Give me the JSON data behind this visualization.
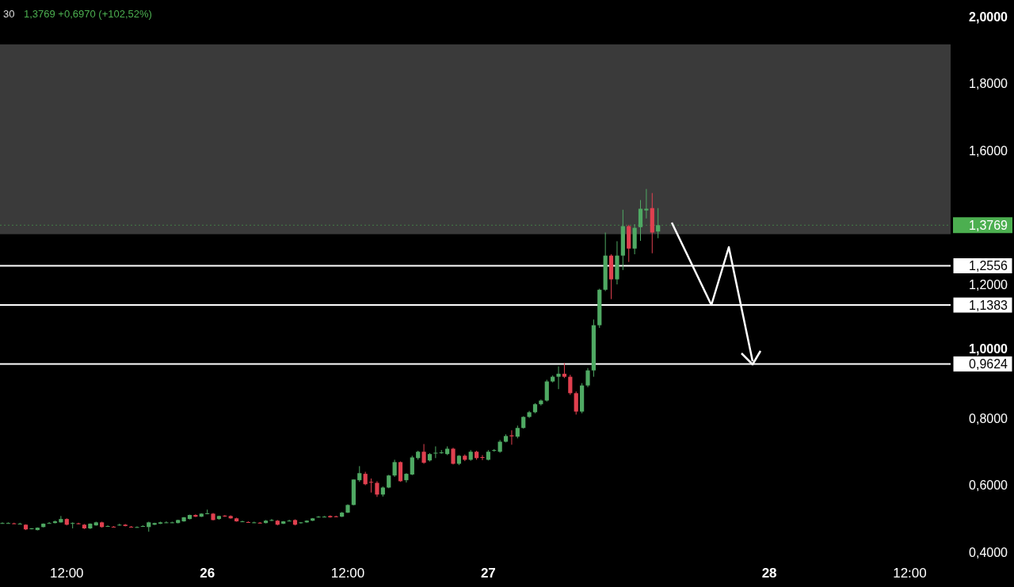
{
  "chart_data": {
    "type": "candlestick",
    "title": "30",
    "subtitle": "1,3769 +0,6970 (+102,52%)",
    "categories": [
      null,
      null,
      null,
      null,
      null,
      null,
      null,
      null,
      null,
      null,
      null,
      "12:00",
      null,
      null,
      null,
      null,
      null,
      null,
      null,
      null,
      null,
      null,
      null,
      null,
      null,
      null,
      null,
      null,
      null,
      null,
      null,
      null,
      null,
      null,
      null,
      "26",
      null,
      null,
      null,
      null,
      null,
      null,
      null,
      null,
      null,
      null,
      null,
      null,
      null,
      null,
      null,
      null,
      null,
      null,
      null,
      null,
      null,
      null,
      null,
      "12:00",
      null,
      null,
      null,
      null,
      null,
      null,
      null,
      null,
      null,
      null,
      null,
      null,
      null,
      null,
      null,
      null,
      null,
      null,
      null,
      null,
      null,
      null,
      null,
      "27",
      null,
      null,
      null,
      null,
      null,
      null,
      null,
      null,
      null,
      null,
      null,
      null,
      null,
      null,
      null,
      null,
      null,
      null,
      null,
      null,
      null,
      null,
      null,
      null,
      null,
      null,
      null,
      null,
      null,
      null,
      null,
      null,
      null,
      null,
      null,
      null,
      null,
      null,
      null,
      null,
      null,
      null,
      null,
      null,
      null,
      null,
      null,
      "28",
      null,
      null,
      null,
      null,
      null,
      null,
      null,
      null,
      null,
      null,
      null,
      null,
      null,
      null,
      null,
      null,
      null,
      null,
      null,
      null,
      null,
      null,
      null,
      "12:00",
      null,
      null,
      null,
      null,
      null,
      null
    ],
    "ohlc": [
      [
        0.487,
        0.489,
        0.485,
        0.487
      ],
      [
        0.487,
        0.489,
        0.485,
        0.487
      ],
      [
        0.486,
        0.488,
        0.484,
        0.485
      ],
      [
        0.485,
        0.488,
        0.483,
        0.485
      ],
      [
        0.482,
        0.483,
        0.466,
        0.468
      ],
      [
        0.47,
        0.472,
        0.468,
        0.471
      ],
      [
        0.466,
        0.474,
        0.465,
        0.473
      ],
      [
        0.475,
        0.486,
        0.474,
        0.485
      ],
      [
        0.486,
        0.49,
        0.485,
        0.487
      ],
      [
        0.487,
        0.494,
        0.486,
        0.492
      ],
      [
        0.489,
        0.508,
        0.488,
        0.499
      ],
      [
        0.499,
        0.501,
        0.48,
        0.482
      ],
      [
        0.487,
        0.489,
        0.471,
        0.487
      ],
      [
        0.486,
        0.488,
        0.483,
        0.485
      ],
      [
        0.482,
        0.484,
        0.469,
        0.471
      ],
      [
        0.471,
        0.486,
        0.469,
        0.485
      ],
      [
        0.48,
        0.491,
        0.479,
        0.489
      ],
      [
        0.489,
        0.491,
        0.473,
        0.475
      ],
      [
        0.478,
        0.48,
        0.476,
        0.478
      ],
      [
        0.476,
        0.478,
        0.474,
        0.475
      ],
      [
        0.481,
        0.485,
        0.479,
        0.482
      ],
      [
        0.482,
        0.484,
        0.477,
        0.478
      ],
      [
        0.476,
        0.478,
        0.474,
        0.475
      ],
      [
        0.475,
        0.477,
        0.473,
        0.475
      ],
      [
        0.477,
        0.48,
        0.476,
        0.478
      ],
      [
        0.475,
        0.491,
        0.461,
        0.489
      ],
      [
        0.482,
        0.488,
        0.481,
        0.487
      ],
      [
        0.485,
        0.491,
        0.484,
        0.489
      ],
      [
        0.489,
        0.492,
        0.487,
        0.489
      ],
      [
        0.489,
        0.491,
        0.487,
        0.489
      ],
      [
        0.487,
        0.497,
        0.486,
        0.496
      ],
      [
        0.492,
        0.505,
        0.491,
        0.504
      ],
      [
        0.499,
        0.512,
        0.498,
        0.511
      ],
      [
        0.511,
        0.513,
        0.505,
        0.506
      ],
      [
        0.506,
        0.516,
        0.505,
        0.515
      ],
      [
        0.515,
        0.527,
        0.513,
        0.516
      ],
      [
        0.515,
        0.517,
        0.495,
        0.496
      ],
      [
        0.499,
        0.509,
        0.497,
        0.508
      ],
      [
        0.509,
        0.511,
        0.505,
        0.507
      ],
      [
        0.508,
        0.51,
        0.5,
        0.501
      ],
      [
        0.501,
        0.503,
        0.491,
        0.492
      ],
      [
        0.492,
        0.494,
        0.49,
        0.492
      ],
      [
        0.49,
        0.492,
        0.488,
        0.489
      ],
      [
        0.489,
        0.491,
        0.487,
        0.489
      ],
      [
        0.488,
        0.49,
        0.485,
        0.487
      ],
      [
        0.487,
        0.496,
        0.486,
        0.494
      ],
      [
        0.495,
        0.499,
        0.493,
        0.496
      ],
      [
        0.494,
        0.496,
        0.48,
        0.482
      ],
      [
        0.485,
        0.493,
        0.484,
        0.492
      ],
      [
        0.494,
        0.497,
        0.492,
        0.494
      ],
      [
        0.496,
        0.498,
        0.48,
        0.482
      ],
      [
        0.487,
        0.49,
        0.485,
        0.489
      ],
      [
        0.489,
        0.495,
        0.488,
        0.494
      ],
      [
        0.494,
        0.502,
        0.493,
        0.501
      ],
      [
        0.504,
        0.508,
        0.503,
        0.506
      ],
      [
        0.506,
        0.508,
        0.504,
        0.506
      ],
      [
        0.508,
        0.51,
        0.503,
        0.504
      ],
      [
        0.507,
        0.509,
        0.504,
        0.505
      ],
      [
        0.506,
        0.52,
        0.505,
        0.518
      ],
      [
        0.518,
        0.543,
        0.517,
        0.541
      ],
      [
        0.541,
        0.617,
        0.54,
        0.617
      ],
      [
        0.615,
        0.657,
        0.61,
        0.636
      ],
      [
        0.634,
        0.64,
        0.6,
        0.603
      ],
      [
        0.61,
        0.62,
        0.578,
        0.609
      ],
      [
        0.607,
        0.612,
        0.565,
        0.572
      ],
      [
        0.572,
        0.596,
        0.566,
        0.593
      ],
      [
        0.593,
        0.631,
        0.591,
        0.629
      ],
      [
        0.629,
        0.676,
        0.625,
        0.669
      ],
      [
        0.669,
        0.671,
        0.61,
        0.612
      ],
      [
        0.615,
        0.636,
        0.608,
        0.634
      ],
      [
        0.632,
        0.688,
        0.63,
        0.683
      ],
      [
        0.681,
        0.703,
        0.676,
        0.7
      ],
      [
        0.7,
        0.723,
        0.664,
        0.667
      ],
      [
        0.674,
        0.696,
        0.671,
        0.693
      ],
      [
        0.695,
        0.716,
        0.681,
        0.697
      ],
      [
        0.698,
        0.705,
        0.694,
        0.698
      ],
      [
        0.693,
        0.716,
        0.69,
        0.709
      ],
      [
        0.709,
        0.712,
        0.662,
        0.664
      ],
      [
        0.664,
        0.69,
        0.66,
        0.688
      ],
      [
        0.688,
        0.692,
        0.672,
        0.676
      ],
      [
        0.676,
        0.705,
        0.673,
        0.7
      ],
      [
        0.7,
        0.703,
        0.676,
        0.681
      ],
      [
        0.684,
        0.69,
        0.675,
        0.682
      ],
      [
        0.676,
        0.705,
        0.674,
        0.7
      ],
      [
        0.703,
        0.708,
        0.7,
        0.705
      ],
      [
        0.7,
        0.735,
        0.697,
        0.73
      ],
      [
        0.73,
        0.752,
        0.728,
        0.747
      ],
      [
        0.749,
        0.764,
        0.721,
        0.746
      ],
      [
        0.745,
        0.778,
        0.74,
        0.771
      ],
      [
        0.771,
        0.806,
        0.769,
        0.804
      ],
      [
        0.804,
        0.822,
        0.801,
        0.818
      ],
      [
        0.818,
        0.845,
        0.815,
        0.842
      ],
      [
        0.842,
        0.856,
        0.838,
        0.853
      ],
      [
        0.853,
        0.915,
        0.85,
        0.91
      ],
      [
        0.91,
        0.928,
        0.907,
        0.924
      ],
      [
        0.924,
        0.955,
        0.887,
        0.933
      ],
      [
        0.933,
        0.965,
        0.92,
        0.924
      ],
      [
        0.924,
        0.93,
        0.87,
        0.875
      ],
      [
        0.875,
        0.88,
        0.811,
        0.82
      ],
      [
        0.82,
        0.905,
        0.815,
        0.898
      ],
      [
        0.898,
        0.95,
        0.893,
        0.943
      ],
      [
        0.943,
        1.095,
        0.924,
        1.078
      ],
      [
        1.078,
        1.187,
        1.07,
        1.184
      ],
      [
        1.184,
        1.355,
        1.18,
        1.286
      ],
      [
        1.286,
        1.29,
        1.156,
        1.215
      ],
      [
        1.215,
        1.329,
        1.2,
        1.286
      ],
      [
        1.286,
        1.423,
        1.243,
        1.374
      ],
      [
        1.374,
        1.378,
        1.267,
        1.307
      ],
      [
        1.307,
        1.38,
        1.29,
        1.369
      ],
      [
        1.371,
        1.452,
        1.33,
        1.426
      ],
      [
        1.421,
        1.485,
        1.397,
        1.426
      ],
      [
        1.428,
        1.473,
        1.293,
        1.355
      ],
      [
        1.358,
        1.428,
        1.338,
        1.3769
      ],
      null,
      null,
      null,
      null,
      null,
      null,
      null,
      null,
      null,
      null,
      null,
      null,
      null,
      null,
      null,
      null,
      null,
      null,
      null,
      null,
      null,
      null,
      null,
      null,
      null,
      null,
      null,
      null,
      null,
      null,
      null,
      null,
      null,
      null,
      null,
      null,
      null,
      null,
      null,
      null,
      null,
      null,
      null,
      null,
      null,
      null,
      null,
      null,
      null
    ],
    "ylim": [
      0.4,
      2.0
    ],
    "yticks": [
      {
        "value": 0.4,
        "label": "0,4000"
      },
      {
        "value": 0.6,
        "label": "0,6000"
      },
      {
        "value": 0.8,
        "label": "0,8000"
      },
      {
        "value": 1.0,
        "label": "1,0000"
      },
      {
        "value": 1.2,
        "label": "1,2000"
      },
      {
        "value": 1.6,
        "label": "1,6000"
      },
      {
        "value": 1.8,
        "label": "1,8000"
      },
      {
        "value": 2.0,
        "label": "2,0000"
      }
    ],
    "bands": [
      {
        "axis": "y",
        "from": 1.35,
        "to": 1.917,
        "color": "#3a3a3a"
      }
    ],
    "ref_lines": [
      {
        "axis": "y",
        "value": 1.3769,
        "label": "1,3769",
        "color": "#4caf50",
        "line_style": "dotted"
      },
      {
        "axis": "y",
        "value": 1.2556,
        "label": "1,2556",
        "color": "#ffffff",
        "line_style": "solid"
      },
      {
        "axis": "y",
        "value": 1.1383,
        "label": "1,1383",
        "color": "#ffffff",
        "line_style": "solid"
      },
      {
        "axis": "y",
        "value": 0.9624,
        "label": "0,9624",
        "color": "#ffffff",
        "line_style": "solid"
      }
    ],
    "grid": false
  }
}
